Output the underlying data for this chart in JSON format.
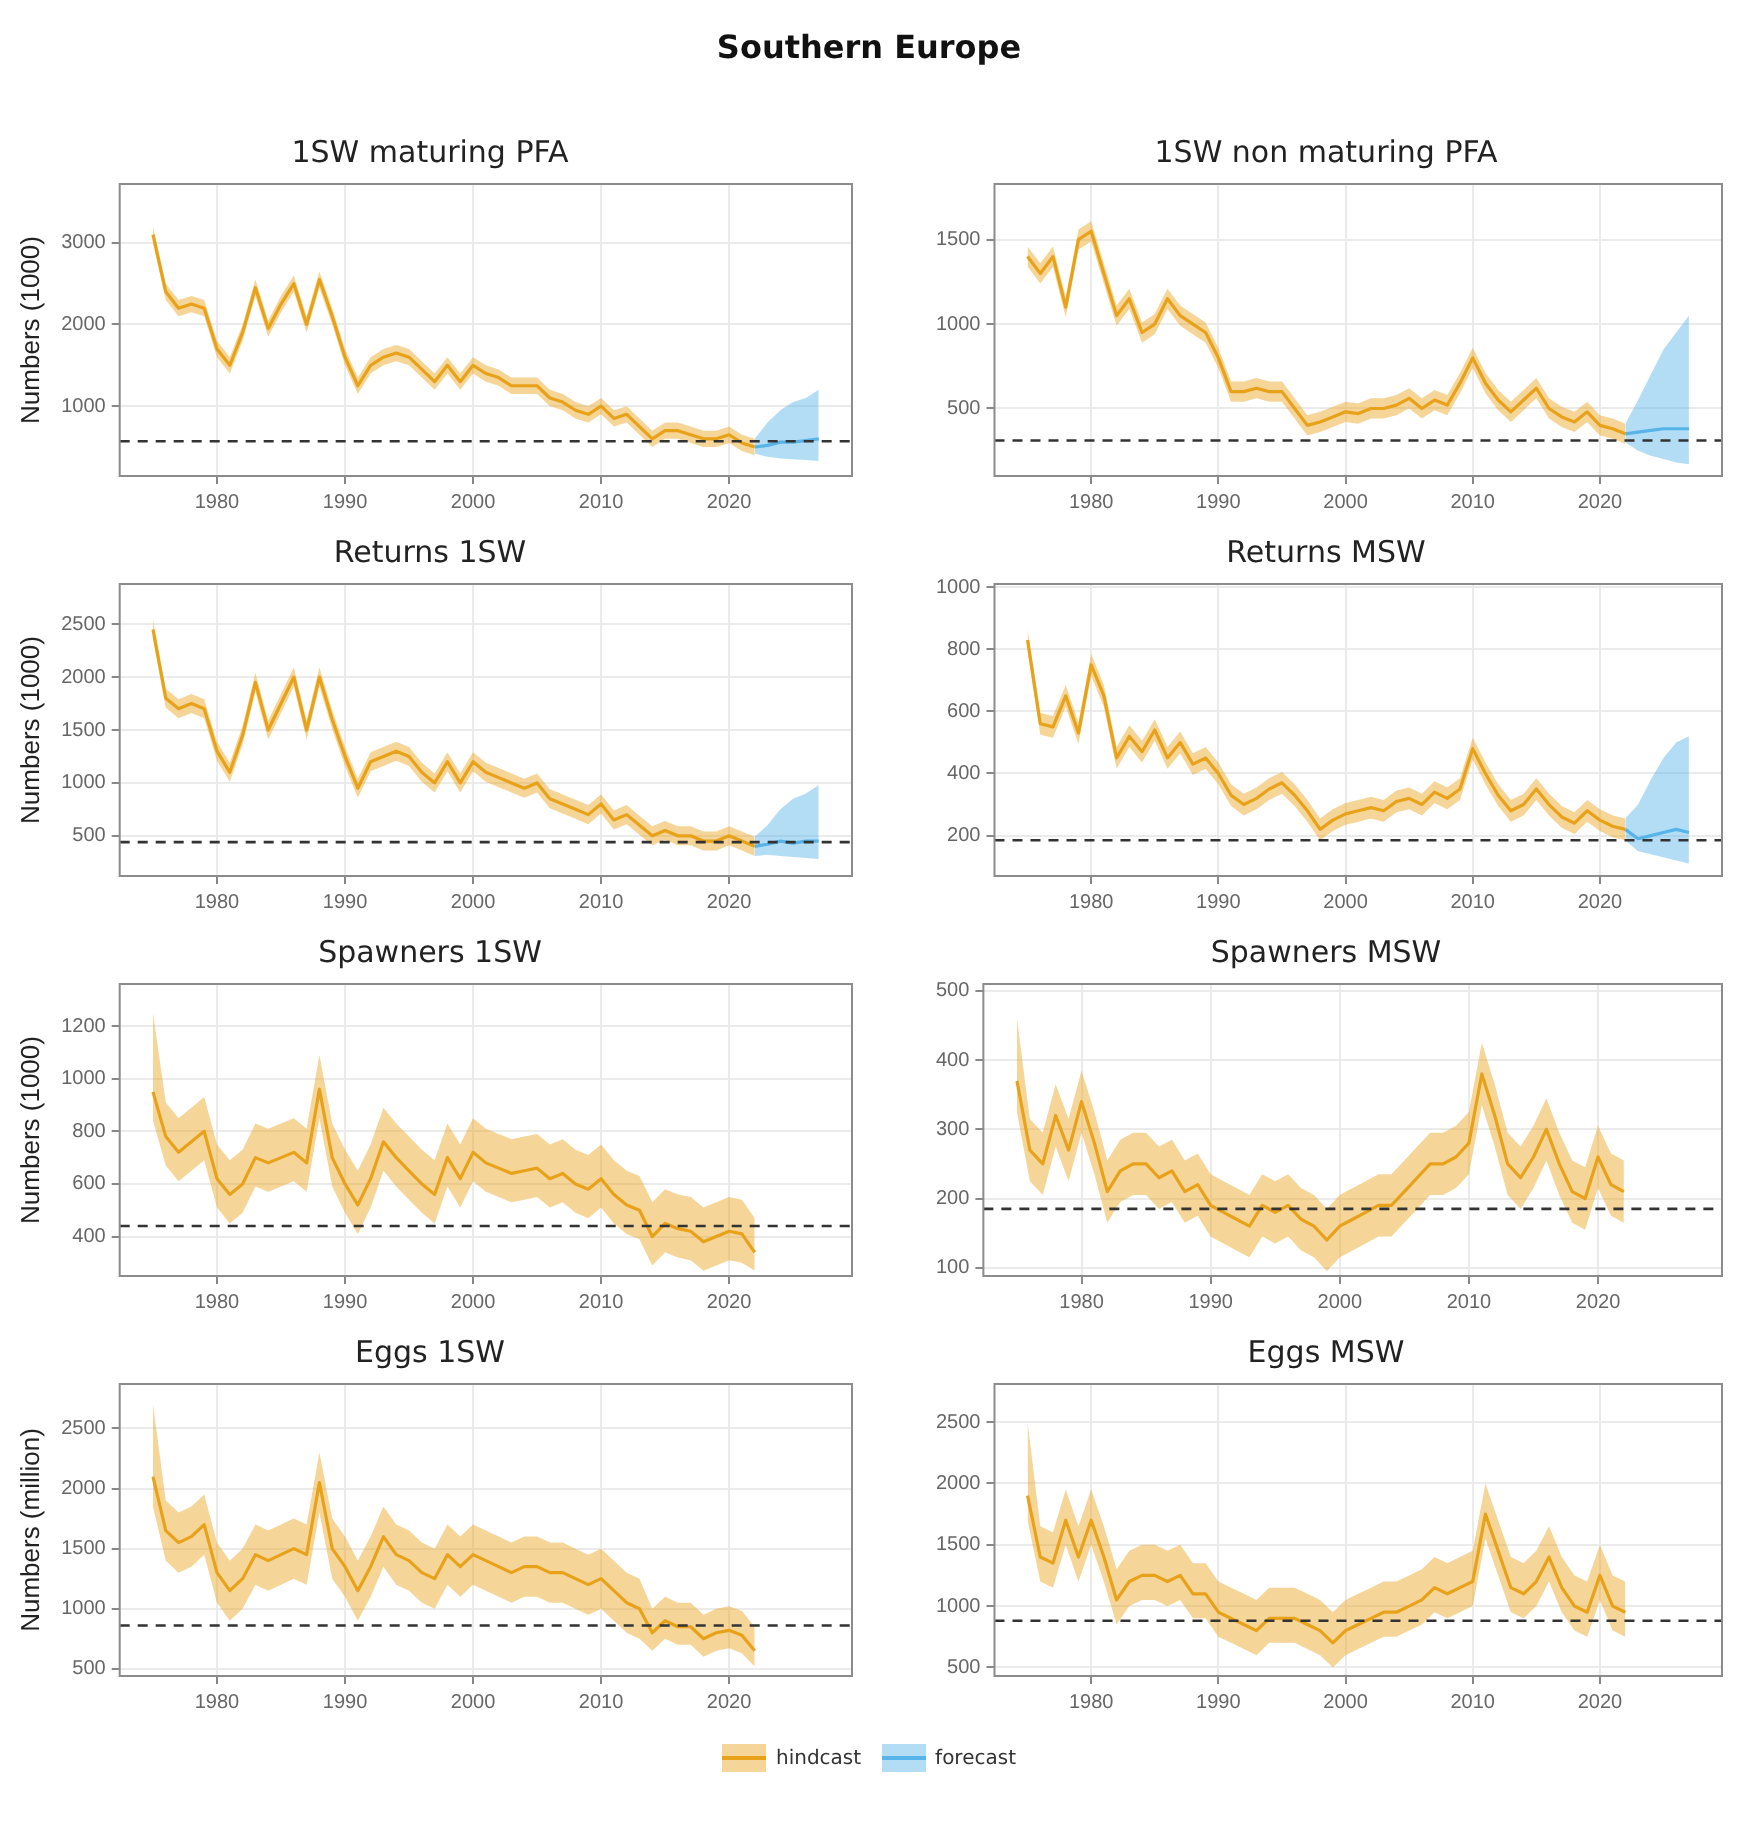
{
  "chart_data": [
    {
      "type": "other",
      "title": "Southern Europe"
    },
    {
      "type": "line",
      "title": "1SW maturing PFA",
      "ylabel": "Numbers (1000)",
      "x": [
        1975,
        1976,
        1977,
        1978,
        1979,
        1980,
        1981,
        1982,
        1983,
        1984,
        1985,
        1986,
        1987,
        1988,
        1989,
        1990,
        1991,
        1992,
        1993,
        1994,
        1995,
        1996,
        1997,
        1998,
        1999,
        2000,
        2001,
        2002,
        2003,
        2004,
        2005,
        2006,
        2007,
        2008,
        2009,
        2010,
        2011,
        2012,
        2013,
        2014,
        2015,
        2016,
        2017,
        2018,
        2019,
        2020,
        2021,
        2022
      ],
      "xlim": [
        1972.4,
        2029.6
      ],
      "xticks": [
        1980,
        1990,
        2000,
        2010,
        2020
      ],
      "ylim": [
        145,
        3720
      ],
      "yticks": [
        1000,
        2000,
        3000
      ],
      "grid": true,
      "legend": "bottom",
      "marker": "none",
      "series": [
        {
          "name": "hindcast",
          "color": "#e8a21a",
          "values": [
            3100,
            2400,
            2200,
            2250,
            2200,
            1700,
            1500,
            1900,
            2450,
            1950,
            2250,
            2500,
            2000,
            2550,
            2100,
            1600,
            1250,
            1500,
            1600,
            1650,
            1600,
            1450,
            1300,
            1500,
            1300,
            1500,
            1400,
            1350,
            1250,
            1250,
            1250,
            1100,
            1050,
            950,
            900,
            1000,
            850,
            900,
            750,
            600,
            700,
            700,
            650,
            600,
            600,
            650,
            550,
            500
          ],
          "lower": [
            3000,
            2300,
            2100,
            2150,
            2100,
            1600,
            1400,
            1800,
            2350,
            1850,
            2150,
            2400,
            1900,
            2450,
            2000,
            1500,
            1150,
            1400,
            1500,
            1550,
            1500,
            1350,
            1200,
            1400,
            1200,
            1400,
            1300,
            1250,
            1150,
            1150,
            1150,
            1000,
            950,
            850,
            800,
            900,
            750,
            800,
            650,
            500,
            600,
            600,
            550,
            500,
            500,
            550,
            450,
            400
          ],
          "upper": [
            3200,
            2500,
            2300,
            2350,
            2300,
            1800,
            1600,
            2000,
            2550,
            2050,
            2350,
            2600,
            2100,
            2650,
            2200,
            1700,
            1350,
            1600,
            1700,
            1750,
            1700,
            1550,
            1400,
            1600,
            1400,
            1600,
            1500,
            1450,
            1350,
            1350,
            1350,
            1200,
            1150,
            1050,
            1000,
            1100,
            950,
            1000,
            850,
            700,
            800,
            800,
            750,
            700,
            700,
            750,
            650,
            600
          ]
        },
        {
          "name": "forecast",
          "color": "#56b4e9",
          "x": [
            2022,
            2023,
            2024,
            2025,
            2026,
            2027
          ],
          "values": [
            500,
            520,
            560,
            560,
            580,
            600
          ],
          "lower": [
            420,
            380,
            360,
            350,
            340,
            330
          ],
          "upper": [
            600,
            800,
            950,
            1050,
            1100,
            1200
          ]
        }
      ],
      "ref_lines": [
        {
          "axis": "y",
          "value": 570,
          "line_style": "dashed",
          "color": "#333333"
        }
      ]
    },
    {
      "type": "line",
      "title": "1SW non maturing PFA",
      "x": [
        1975,
        1976,
        1977,
        1978,
        1979,
        1980,
        1981,
        1982,
        1983,
        1984,
        1985,
        1986,
        1987,
        1988,
        1989,
        1990,
        1991,
        1992,
        1993,
        1994,
        1995,
        1996,
        1997,
        1998,
        1999,
        2000,
        2001,
        2002,
        2003,
        2004,
        2005,
        2006,
        2007,
        2008,
        2009,
        2010,
        2011,
        2012,
        2013,
        2014,
        2015,
        2016,
        2017,
        2018,
        2019,
        2020,
        2021,
        2022
      ],
      "xlim": [
        1972.4,
        2029.6
      ],
      "xticks": [
        1980,
        1990,
        2000,
        2010,
        2020
      ],
      "ylim": [
        100,
        1830
      ],
      "yticks": [
        500,
        1000,
        1500
      ],
      "grid": true,
      "legend": false,
      "marker": "none",
      "series": [
        {
          "color": "#e8a21a",
          "values": [
            1400,
            1300,
            1400,
            1100,
            1500,
            1550,
            1300,
            1050,
            1150,
            950,
            1000,
            1150,
            1050,
            1000,
            950,
            800,
            600,
            600,
            620,
            600,
            600,
            500,
            400,
            420,
            450,
            480,
            470,
            500,
            500,
            520,
            560,
            500,
            550,
            520,
            650,
            800,
            650,
            550,
            480,
            550,
            620,
            500,
            450,
            420,
            480,
            400,
            380,
            350
          ],
          "lower": [
            1340,
            1240,
            1340,
            1040,
            1440,
            1490,
            1240,
            990,
            1090,
            890,
            940,
            1090,
            990,
            940,
            890,
            740,
            540,
            540,
            560,
            540,
            540,
            440,
            340,
            360,
            390,
            420,
            410,
            440,
            440,
            460,
            500,
            440,
            490,
            460,
            590,
            740,
            590,
            490,
            420,
            490,
            560,
            440,
            390,
            360,
            420,
            340,
            320,
            290
          ],
          "upper": [
            1460,
            1360,
            1460,
            1160,
            1560,
            1610,
            1360,
            1110,
            1210,
            1010,
            1060,
            1210,
            1110,
            1060,
            1010,
            860,
            660,
            660,
            680,
            660,
            660,
            560,
            460,
            480,
            510,
            540,
            530,
            560,
            560,
            580,
            620,
            560,
            610,
            580,
            710,
            860,
            710,
            610,
            540,
            610,
            680,
            560,
            510,
            480,
            540,
            460,
            440,
            410
          ]
        },
        {
          "color": "#56b4e9",
          "x": [
            2022,
            2023,
            2024,
            2025,
            2026,
            2027
          ],
          "values": [
            350,
            360,
            370,
            380,
            380,
            380
          ],
          "lower": [
            300,
            250,
            220,
            200,
            180,
            170
          ],
          "upper": [
            410,
            550,
            700,
            850,
            950,
            1050
          ]
        }
      ],
      "ref_lines": [
        {
          "axis": "y",
          "value": 310,
          "line_style": "dashed",
          "color": "#333333"
        }
      ]
    },
    {
      "type": "line",
      "title": "Returns 1SW",
      "ylabel": "Numbers (1000)",
      "x": [
        1975,
        1976,
        1977,
        1978,
        1979,
        1980,
        1981,
        1982,
        1983,
        1984,
        1985,
        1986,
        1987,
        1988,
        1989,
        1990,
        1991,
        1992,
        1993,
        1994,
        1995,
        1996,
        1997,
        1998,
        1999,
        2000,
        2001,
        2002,
        2003,
        2004,
        2005,
        2006,
        2007,
        2008,
        2009,
        2010,
        2011,
        2012,
        2013,
        2014,
        2015,
        2016,
        2017,
        2018,
        2019,
        2020,
        2021,
        2022
      ],
      "xlim": [
        1972.4,
        2029.6
      ],
      "xticks": [
        1980,
        1990,
        2000,
        2010,
        2020
      ],
      "ylim": [
        120,
        2880
      ],
      "yticks": [
        500,
        1000,
        1500,
        2000,
        2500
      ],
      "grid": true,
      "legend": false,
      "marker": "none",
      "series": [
        {
          "color": "#e8a21a",
          "values": [
            2450,
            1800,
            1700,
            1750,
            1700,
            1300,
            1100,
            1450,
            1950,
            1500,
            1750,
            2000,
            1500,
            2000,
            1600,
            1250,
            950,
            1200,
            1250,
            1300,
            1250,
            1100,
            1000,
            1200,
            1000,
            1200,
            1100,
            1050,
            1000,
            950,
            1000,
            850,
            800,
            750,
            700,
            800,
            650,
            700,
            600,
            500,
            550,
            500,
            500,
            450,
            450,
            500,
            450,
            400
          ],
          "lower": [
            2360,
            1710,
            1610,
            1660,
            1610,
            1210,
            1010,
            1360,
            1860,
            1410,
            1660,
            1910,
            1410,
            1910,
            1510,
            1160,
            860,
            1110,
            1160,
            1210,
            1160,
            1010,
            910,
            1110,
            910,
            1110,
            1010,
            960,
            910,
            860,
            910,
            760,
            710,
            660,
            610,
            710,
            560,
            610,
            510,
            410,
            460,
            410,
            410,
            360,
            360,
            410,
            360,
            310
          ],
          "upper": [
            2540,
            1890,
            1790,
            1840,
            1790,
            1390,
            1190,
            1540,
            2040,
            1590,
            1840,
            2090,
            1590,
            2090,
            1690,
            1340,
            1040,
            1290,
            1340,
            1390,
            1340,
            1190,
            1090,
            1290,
            1090,
            1290,
            1190,
            1140,
            1090,
            1040,
            1090,
            940,
            890,
            840,
            790,
            890,
            740,
            790,
            690,
            590,
            640,
            590,
            590,
            540,
            540,
            590,
            540,
            490
          ]
        },
        {
          "color": "#56b4e9",
          "x": [
            2022,
            2023,
            2024,
            2025,
            2026,
            2027
          ],
          "values": [
            400,
            420,
            450,
            430,
            450,
            450
          ],
          "lower": [
            310,
            320,
            310,
            300,
            290,
            280
          ],
          "upper": [
            490,
            600,
            750,
            850,
            900,
            980
          ]
        }
      ],
      "ref_lines": [
        {
          "axis": "y",
          "value": 440,
          "line_style": "dashed",
          "color": "#333333"
        }
      ]
    },
    {
      "type": "line",
      "title": "Returns MSW",
      "x": [
        1975,
        1976,
        1977,
        1978,
        1979,
        1980,
        1981,
        1982,
        1983,
        1984,
        1985,
        1986,
        1987,
        1988,
        1989,
        1990,
        1991,
        1992,
        1993,
        1994,
        1995,
        1996,
        1997,
        1998,
        1999,
        2000,
        2001,
        2002,
        2003,
        2004,
        2005,
        2006,
        2007,
        2008,
        2009,
        2010,
        2011,
        2012,
        2013,
        2014,
        2015,
        2016,
        2017,
        2018,
        2019,
        2020,
        2021,
        2022
      ],
      "xlim": [
        1972.4,
        2029.6
      ],
      "xticks": [
        1980,
        1990,
        2000,
        2010,
        2020
      ],
      "ylim": [
        70,
        1010
      ],
      "yticks": [
        200,
        400,
        600,
        800,
        1000
      ],
      "grid": true,
      "legend": false,
      "marker": "none",
      "series": [
        {
          "color": "#e8a21a",
          "values": [
            830,
            560,
            550,
            650,
            530,
            750,
            650,
            450,
            520,
            470,
            540,
            450,
            500,
            430,
            450,
            400,
            330,
            300,
            320,
            350,
            370,
            330,
            280,
            220,
            250,
            270,
            280,
            290,
            280,
            310,
            320,
            300,
            340,
            320,
            350,
            480,
            400,
            330,
            280,
            300,
            350,
            300,
            260,
            240,
            280,
            250,
            230,
            220
          ],
          "lower": [
            795,
            525,
            515,
            615,
            495,
            715,
            615,
            415,
            485,
            435,
            505,
            415,
            465,
            395,
            415,
            365,
            295,
            265,
            285,
            315,
            335,
            295,
            245,
            185,
            215,
            235,
            245,
            255,
            245,
            275,
            285,
            265,
            305,
            285,
            315,
            445,
            365,
            295,
            245,
            265,
            315,
            265,
            225,
            205,
            245,
            215,
            195,
            185
          ],
          "upper": [
            865,
            595,
            585,
            685,
            565,
            785,
            685,
            485,
            555,
            505,
            575,
            485,
            535,
            465,
            485,
            435,
            365,
            335,
            355,
            385,
            405,
            365,
            315,
            255,
            285,
            305,
            315,
            325,
            315,
            345,
            355,
            335,
            375,
            355,
            385,
            515,
            435,
            365,
            315,
            335,
            385,
            335,
            295,
            275,
            315,
            285,
            265,
            255
          ]
        },
        {
          "color": "#56b4e9",
          "x": [
            2022,
            2023,
            2024,
            2025,
            2026,
            2027
          ],
          "values": [
            220,
            190,
            200,
            210,
            220,
            210
          ],
          "lower": [
            185,
            150,
            140,
            130,
            120,
            110
          ],
          "upper": [
            255,
            300,
            380,
            450,
            500,
            520
          ]
        }
      ],
      "ref_lines": [
        {
          "axis": "y",
          "value": 185,
          "line_style": "dashed",
          "color": "#333333"
        }
      ]
    },
    {
      "type": "line",
      "title": "Spawners 1SW",
      "ylabel": "Numbers (1000)",
      "x": [
        1975,
        1976,
        1977,
        1978,
        1979,
        1980,
        1981,
        1982,
        1983,
        1984,
        1985,
        1986,
        1987,
        1988,
        1989,
        1990,
        1991,
        1992,
        1993,
        1994,
        1995,
        1996,
        1997,
        1998,
        1999,
        2000,
        2001,
        2002,
        2003,
        2004,
        2005,
        2006,
        2007,
        2008,
        2009,
        2010,
        2011,
        2012,
        2013,
        2014,
        2015,
        2016,
        2017,
        2018,
        2019,
        2020,
        2021,
        2022
      ],
      "xlim": [
        1972.4,
        2029.6
      ],
      "xticks": [
        1980,
        1990,
        2000,
        2010,
        2020
      ],
      "ylim": [
        250,
        1360
      ],
      "yticks": [
        400,
        600,
        800,
        1000,
        1200
      ],
      "grid": true,
      "legend": false,
      "marker": "none",
      "series": [
        {
          "color": "#e8a21a",
          "values": [
            950,
            780,
            720,
            760,
            800,
            620,
            560,
            600,
            700,
            680,
            700,
            720,
            680,
            960,
            700,
            600,
            520,
            620,
            760,
            700,
            650,
            600,
            560,
            700,
            620,
            720,
            680,
            660,
            640,
            650,
            660,
            620,
            640,
            600,
            580,
            620,
            560,
            520,
            500,
            400,
            450,
            430,
            420,
            380,
            400,
            420,
            410,
            340
          ],
          "lower": [
            840,
            670,
            610,
            650,
            690,
            510,
            450,
            490,
            590,
            570,
            590,
            610,
            570,
            850,
            590,
            490,
            410,
            510,
            650,
            590,
            540,
            490,
            450,
            590,
            510,
            610,
            570,
            550,
            530,
            540,
            550,
            510,
            530,
            490,
            470,
            510,
            450,
            410,
            390,
            290,
            340,
            320,
            310,
            270,
            290,
            310,
            300,
            270
          ],
          "upper": [
            1250,
            910,
            850,
            890,
            930,
            750,
            690,
            730,
            830,
            810,
            830,
            850,
            810,
            1090,
            830,
            730,
            650,
            750,
            890,
            830,
            780,
            730,
            690,
            830,
            750,
            850,
            810,
            790,
            770,
            780,
            790,
            750,
            770,
            730,
            710,
            750,
            690,
            650,
            630,
            530,
            580,
            560,
            550,
            510,
            530,
            550,
            540,
            470
          ]
        }
      ],
      "ref_lines": [
        {
          "axis": "y",
          "value": 440,
          "line_style": "dashed",
          "color": "#333333"
        }
      ]
    },
    {
      "type": "line",
      "title": "Spawners MSW",
      "x": [
        1975,
        1976,
        1977,
        1978,
        1979,
        1980,
        1981,
        1982,
        1983,
        1984,
        1985,
        1986,
        1987,
        1988,
        1989,
        1990,
        1991,
        1992,
        1993,
        1994,
        1995,
        1996,
        1997,
        1998,
        1999,
        2000,
        2001,
        2002,
        2003,
        2004,
        2005,
        2006,
        2007,
        2008,
        2009,
        2010,
        2011,
        2012,
        2013,
        2014,
        2015,
        2016,
        2017,
        2018,
        2019,
        2020,
        2021,
        2022
      ],
      "xlim": [
        1972.4,
        2029.6
      ],
      "xticks": [
        1980,
        1990,
        2000,
        2010,
        2020
      ],
      "ylim": [
        88,
        510
      ],
      "yticks": [
        100,
        200,
        300,
        400,
        500
      ],
      "grid": true,
      "legend": false,
      "marker": "none",
      "series": [
        {
          "color": "#e8a21a",
          "values": [
            370,
            270,
            250,
            320,
            270,
            340,
            280,
            210,
            240,
            250,
            250,
            230,
            240,
            210,
            220,
            190,
            180,
            170,
            160,
            190,
            180,
            190,
            170,
            160,
            140,
            160,
            170,
            180,
            190,
            190,
            210,
            230,
            250,
            250,
            260,
            280,
            380,
            320,
            250,
            230,
            260,
            300,
            250,
            210,
            200,
            260,
            220,
            210
          ],
          "lower": [
            325,
            225,
            205,
            275,
            225,
            295,
            235,
            165,
            195,
            205,
            205,
            185,
            195,
            165,
            175,
            145,
            135,
            125,
            115,
            145,
            135,
            145,
            125,
            115,
            95,
            115,
            125,
            135,
            145,
            145,
            165,
            185,
            205,
            205,
            215,
            235,
            335,
            275,
            205,
            185,
            215,
            255,
            205,
            165,
            155,
            215,
            175,
            165
          ],
          "upper": [
            460,
            315,
            295,
            365,
            315,
            385,
            325,
            255,
            285,
            295,
            295,
            275,
            285,
            255,
            265,
            235,
            225,
            215,
            205,
            235,
            225,
            235,
            215,
            205,
            185,
            205,
            215,
            225,
            235,
            235,
            255,
            275,
            295,
            295,
            305,
            325,
            425,
            365,
            295,
            275,
            305,
            345,
            295,
            255,
            245,
            305,
            265,
            255
          ]
        }
      ],
      "ref_lines": [
        {
          "axis": "y",
          "value": 185,
          "line_style": "dashed",
          "color": "#333333"
        }
      ]
    },
    {
      "type": "line",
      "title": "Eggs 1SW",
      "ylabel": "Numbers (million)",
      "x": [
        1975,
        1976,
        1977,
        1978,
        1979,
        1980,
        1981,
        1982,
        1983,
        1984,
        1985,
        1986,
        1987,
        1988,
        1989,
        1990,
        1991,
        1992,
        1993,
        1994,
        1995,
        1996,
        1997,
        1998,
        1999,
        2000,
        2001,
        2002,
        2003,
        2004,
        2005,
        2006,
        2007,
        2008,
        2009,
        2010,
        2011,
        2012,
        2013,
        2014,
        2015,
        2016,
        2017,
        2018,
        2019,
        2020,
        2021,
        2022
      ],
      "xlim": [
        1972.4,
        2029.6
      ],
      "xticks": [
        1980,
        1990,
        2000,
        2010,
        2020
      ],
      "ylim": [
        440,
        2870
      ],
      "yticks": [
        500,
        1000,
        1500,
        2000,
        2500
      ],
      "grid": true,
      "legend": false,
      "marker": "none",
      "series": [
        {
          "color": "#e8a21a",
          "values": [
            2100,
            1650,
            1550,
            1600,
            1700,
            1300,
            1150,
            1250,
            1450,
            1400,
            1450,
            1500,
            1450,
            2050,
            1500,
            1350,
            1150,
            1350,
            1600,
            1450,
            1400,
            1300,
            1250,
            1450,
            1350,
            1450,
            1400,
            1350,
            1300,
            1350,
            1350,
            1300,
            1300,
            1250,
            1200,
            1250,
            1150,
            1050,
            1000,
            800,
            900,
            850,
            850,
            750,
            800,
            820,
            780,
            650
          ],
          "lower": [
            1850,
            1400,
            1300,
            1350,
            1450,
            1050,
            900,
            1000,
            1200,
            1150,
            1200,
            1250,
            1200,
            1800,
            1250,
            1100,
            900,
            1100,
            1350,
            1200,
            1150,
            1050,
            1000,
            1200,
            1100,
            1200,
            1150,
            1100,
            1050,
            1100,
            1100,
            1050,
            1050,
            1000,
            950,
            1000,
            900,
            800,
            750,
            650,
            750,
            700,
            700,
            600,
            650,
            670,
            630,
            520
          ],
          "upper": [
            2700,
            1900,
            1800,
            1850,
            1950,
            1550,
            1400,
            1500,
            1700,
            1650,
            1700,
            1750,
            1700,
            2300,
            1750,
            1600,
            1400,
            1600,
            1850,
            1700,
            1650,
            1550,
            1500,
            1700,
            1600,
            1700,
            1650,
            1600,
            1550,
            1600,
            1600,
            1550,
            1550,
            1500,
            1450,
            1500,
            1400,
            1300,
            1250,
            1000,
            1100,
            1050,
            1050,
            950,
            1000,
            1020,
            980,
            850
          ]
        }
      ],
      "ref_lines": [
        {
          "axis": "y",
          "value": 860,
          "line_style": "dashed",
          "color": "#333333"
        }
      ]
    },
    {
      "type": "line",
      "title": "Eggs MSW",
      "x": [
        1975,
        1976,
        1977,
        1978,
        1979,
        1980,
        1981,
        1982,
        1983,
        1984,
        1985,
        1986,
        1987,
        1988,
        1989,
        1990,
        1991,
        1992,
        1993,
        1994,
        1995,
        1996,
        1997,
        1998,
        1999,
        2000,
        2001,
        2002,
        2003,
        2004,
        2005,
        2006,
        2007,
        2008,
        2009,
        2010,
        2011,
        2012,
        2013,
        2014,
        2015,
        2016,
        2017,
        2018,
        2019,
        2020,
        2021,
        2022
      ],
      "xlim": [
        1972.4,
        2029.6
      ],
      "xticks": [
        1980,
        1990,
        2000,
        2010,
        2020
      ],
      "ylim": [
        430,
        2810
      ],
      "yticks": [
        500,
        1000,
        1500,
        2000,
        2500
      ],
      "grid": true,
      "legend": false,
      "marker": "none",
      "series": [
        {
          "color": "#e8a21a",
          "values": [
            1900,
            1400,
            1350,
            1700,
            1400,
            1700,
            1400,
            1050,
            1200,
            1250,
            1250,
            1200,
            1250,
            1100,
            1100,
            950,
            900,
            850,
            800,
            900,
            900,
            900,
            850,
            800,
            700,
            800,
            850,
            900,
            950,
            950,
            1000,
            1050,
            1150,
            1100,
            1150,
            1200,
            1750,
            1450,
            1150,
            1100,
            1200,
            1400,
            1150,
            1000,
            950,
            1250,
            1000,
            950
          ],
          "lower": [
            1700,
            1200,
            1150,
            1500,
            1200,
            1500,
            1200,
            850,
            1000,
            1050,
            1050,
            1000,
            1050,
            900,
            900,
            750,
            700,
            650,
            600,
            700,
            700,
            700,
            650,
            600,
            500,
            600,
            650,
            700,
            750,
            750,
            800,
            850,
            950,
            900,
            950,
            1000,
            1550,
            1250,
            950,
            900,
            1000,
            1200,
            950,
            800,
            750,
            1050,
            800,
            750
          ],
          "upper": [
            2500,
            1650,
            1600,
            1950,
            1650,
            1950,
            1650,
            1300,
            1450,
            1500,
            1500,
            1450,
            1500,
            1350,
            1350,
            1200,
            1150,
            1100,
            1050,
            1150,
            1150,
            1150,
            1100,
            1050,
            950,
            1050,
            1100,
            1150,
            1200,
            1200,
            1250,
            1300,
            1400,
            1350,
            1400,
            1450,
            2000,
            1700,
            1400,
            1350,
            1450,
            1650,
            1400,
            1250,
            1200,
            1500,
            1250,
            1200
          ]
        }
      ],
      "ref_lines": [
        {
          "axis": "y",
          "value": 880,
          "line_style": "dashed",
          "color": "#333333"
        }
      ]
    }
  ]
}
